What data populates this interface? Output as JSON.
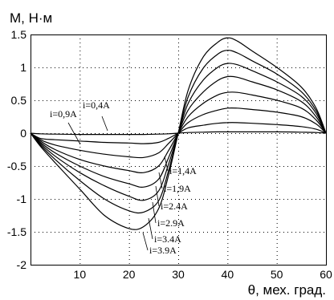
{
  "chart_data": {
    "type": "line",
    "ylabel": "M, Н·м",
    "xlabel": "θ, мех. град.",
    "xlim": [
      0,
      60
    ],
    "ylim": [
      -2,
      1.5
    ],
    "x_ticks": [
      10,
      20,
      30,
      40,
      50,
      60
    ],
    "x_tick_labels": [
      "10",
      "20",
      "30",
      "40",
      "50",
      "60"
    ],
    "y_ticks": [
      1.5,
      1,
      0.5,
      0,
      -0.5,
      -1,
      -1.5,
      -2
    ],
    "y_tick_labels": [
      "1.5",
      "1",
      "0.5",
      "0",
      "-0.5",
      "-1",
      "-1.5",
      "-2"
    ],
    "grid": true,
    "x": [
      0,
      2,
      5,
      10,
      15,
      20,
      23,
      26,
      28,
      30,
      32,
      35,
      38,
      40,
      42,
      45,
      50,
      55,
      58,
      60
    ],
    "series": [
      {
        "name": "i=0,4A",
        "values": [
          0,
          -0.01,
          -0.015,
          -0.02,
          -0.02,
          -0.02,
          -0.02,
          -0.015,
          -0.01,
          0,
          0.01,
          0.015,
          0.02,
          0.02,
          0.02,
          0.02,
          0.02,
          0.015,
          0.01,
          0
        ]
      },
      {
        "name": "i=0,9A",
        "values": [
          0,
          -0.08,
          -0.1,
          -0.12,
          -0.14,
          -0.15,
          -0.16,
          -0.14,
          -0.08,
          0,
          0.08,
          0.12,
          0.15,
          0.16,
          0.16,
          0.15,
          0.13,
          0.1,
          0.06,
          0
        ]
      },
      {
        "name": "i=1,4A",
        "values": [
          0,
          -0.1,
          -0.18,
          -0.26,
          -0.32,
          -0.36,
          -0.37,
          -0.3,
          -0.16,
          0,
          0.16,
          0.28,
          0.35,
          0.38,
          0.38,
          0.36,
          0.32,
          0.25,
          0.14,
          0
        ]
      },
      {
        "name": "i=1,9A",
        "values": [
          0,
          -0.12,
          -0.25,
          -0.4,
          -0.5,
          -0.57,
          -0.6,
          -0.5,
          -0.27,
          0,
          0.25,
          0.45,
          0.58,
          0.62,
          0.62,
          0.58,
          0.5,
          0.38,
          0.2,
          0
        ]
      },
      {
        "name": "i=2.4A",
        "values": [
          0,
          -0.14,
          -0.3,
          -0.5,
          -0.66,
          -0.77,
          -0.82,
          -0.7,
          -0.38,
          0,
          0.35,
          0.62,
          0.8,
          0.86,
          0.85,
          0.78,
          0.66,
          0.48,
          0.25,
          0
        ]
      },
      {
        "name": "i=2.9A",
        "values": [
          0,
          -0.16,
          -0.35,
          -0.6,
          -0.8,
          -0.96,
          -1.02,
          -0.88,
          -0.48,
          0,
          0.45,
          0.8,
          1.0,
          1.06,
          1.04,
          0.95,
          0.78,
          0.56,
          0.3,
          0
        ]
      },
      {
        "name": "i=3.4A",
        "values": [
          0,
          -0.18,
          -0.4,
          -0.72,
          -1.0,
          -1.18,
          -1.2,
          -1.03,
          -0.58,
          0,
          0.55,
          0.98,
          1.2,
          1.26,
          1.22,
          1.1,
          0.9,
          0.63,
          0.34,
          0
        ]
      },
      {
        "name": "i=3.9A",
        "values": [
          0,
          -0.2,
          -0.45,
          -0.85,
          -1.25,
          -1.45,
          -1.42,
          -1.15,
          -0.65,
          0,
          0.65,
          1.15,
          1.38,
          1.45,
          1.4,
          1.25,
          1.0,
          0.7,
          0.38,
          0
        ]
      }
    ]
  }
}
